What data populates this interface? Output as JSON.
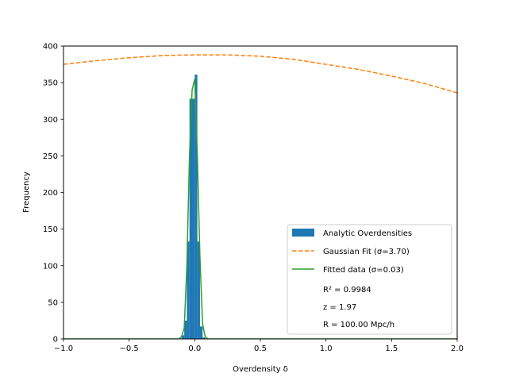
{
  "chart_data": {
    "type": "bar",
    "xlabel": "Overdensity δ",
    "ylabel": "Frequency",
    "xlim": [
      -1.0,
      2.0
    ],
    "ylim": [
      0,
      400
    ],
    "grid": false,
    "legend_placement": "lower-right",
    "x_ticks": [
      -1.0,
      -0.5,
      0.0,
      0.5,
      1.0,
      1.5,
      2.0
    ],
    "x_tick_labels": [
      "−1.0",
      "−0.5",
      "0.0",
      "0.5",
      "1.0",
      "1.5",
      "2.0"
    ],
    "y_ticks": [
      0,
      50,
      100,
      150,
      200,
      250,
      300,
      350,
      400
    ],
    "y_tick_labels": [
      "0",
      "50",
      "100",
      "150",
      "200",
      "250",
      "300",
      "350",
      "400"
    ],
    "histogram": {
      "name": "Analytic Overdensities",
      "color": "#1f77b4",
      "bin_edges": [
        -0.1,
        -0.08,
        -0.06,
        -0.04,
        -0.02,
        0.0,
        0.02,
        0.04,
        0.06,
        0.08,
        0.1
      ],
      "counts": [
        5,
        25,
        133,
        328,
        328,
        361,
        133,
        17,
        2,
        0
      ]
    },
    "gaussian_fit": {
      "name": "Gaussian Fit (σ=3.70)",
      "color": "#ff7f0e",
      "style": "dashed",
      "x": [
        -1.0,
        -0.75,
        -0.5,
        -0.25,
        0.0,
        0.25,
        0.5,
        0.75,
        1.0,
        1.25,
        1.5,
        1.75,
        2.0
      ],
      "y": [
        375,
        380,
        384,
        387,
        388,
        388,
        386,
        382,
        375,
        368,
        359,
        349,
        336
      ]
    },
    "fitted_data": {
      "name": "Fitted data (σ=0.03)",
      "color": "#2ca02c",
      "x": [
        -1.0,
        -0.12,
        -0.1,
        -0.08,
        -0.06,
        -0.04,
        -0.02,
        0.0,
        0.02,
        0.04,
        0.06,
        0.08,
        0.1,
        0.12,
        2.0
      ],
      "y": [
        0,
        0,
        3,
        15,
        100,
        250,
        340,
        355,
        250,
        110,
        20,
        3,
        0,
        0,
        0
      ]
    },
    "legend_entries": [
      "Analytic Overdensities",
      "Gaussian Fit (σ=3.70)",
      "Fitted data (σ=0.03)",
      "R² = 0.9984",
      "z = 1.97",
      "R = 100.00 Mpc/h"
    ]
  }
}
